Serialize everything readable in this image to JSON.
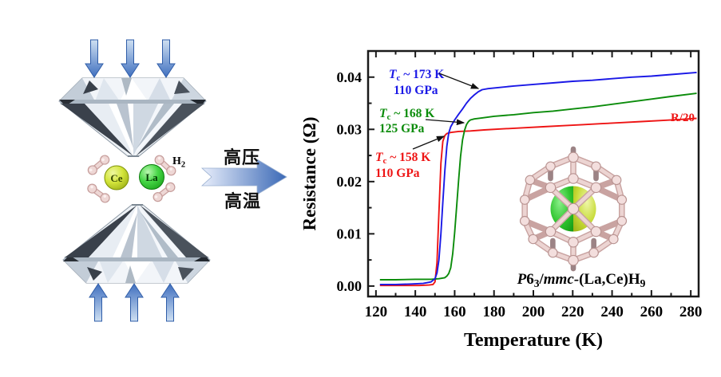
{
  "colors": {
    "red_curve": "#ee1414",
    "green_curve": "#0b8c0b",
    "blue_curve": "#1a18e6",
    "arrow_blue_dark": "#3f6fbf",
    "arrow_blue_light": "#cfe0f2",
    "big_arrow_light": "#e8eefb",
    "big_arrow_dark": "#3b69b6",
    "ce_core": "#d3e53a",
    "ce_edge": "#8fa310",
    "la_core": "#46d646",
    "la_edge": "#129912",
    "h_pink": "#eed7d5",
    "h_pink_edge": "#c59c9a",
    "annotation_arrow": "#111111"
  },
  "dac": {
    "ce": "Ce",
    "la": "La",
    "h2_main": "H",
    "h2_sub": "2"
  },
  "process": {
    "high_pressure": "高压",
    "high_temperature": "高温"
  },
  "chart_data": {
    "type": "line",
    "title": "",
    "xlabel": "Temperature (K)",
    "ylabel": "Resistance (Ω)",
    "xlim": [
      116,
      284
    ],
    "ylim": [
      -0.002,
      0.045
    ],
    "grid": false,
    "legend_position": "none (inline annotations)",
    "xticks": [
      120,
      140,
      160,
      180,
      200,
      220,
      240,
      260,
      280
    ],
    "xticks_minor": [
      130,
      150,
      170,
      190,
      210,
      230,
      250,
      270
    ],
    "yticks": [
      0.0,
      0.01,
      0.02,
      0.03,
      0.04
    ],
    "yticks_minor": [
      0.005,
      0.015,
      0.025,
      0.035
    ],
    "series": [
      {
        "name": "110 GPa, Tc ~ 158 K (R/20)",
        "color": "#ee1414",
        "points": [
          [
            122,
            0.0001
          ],
          [
            128,
            0.0001
          ],
          [
            135,
            0.0001
          ],
          [
            142,
            0.0001
          ],
          [
            147,
            0.0002
          ],
          [
            149,
            0.0003
          ],
          [
            150,
            0.0008
          ],
          [
            151,
            0.0045
          ],
          [
            152,
            0.014
          ],
          [
            153,
            0.0235
          ],
          [
            154,
            0.0277
          ],
          [
            155,
            0.0288
          ],
          [
            156,
            0.0292
          ],
          [
            158,
            0.0294
          ],
          [
            162,
            0.0296
          ],
          [
            168,
            0.0297
          ],
          [
            175,
            0.0299
          ],
          [
            185,
            0.0301
          ],
          [
            195,
            0.0303
          ],
          [
            205,
            0.0305
          ],
          [
            215,
            0.0307
          ],
          [
            225,
            0.0309
          ],
          [
            235,
            0.0311
          ],
          [
            245,
            0.0313
          ],
          [
            255,
            0.0315
          ],
          [
            265,
            0.0317
          ],
          [
            275,
            0.0319
          ],
          [
            283,
            0.0321
          ]
        ]
      },
      {
        "name": "125 GPa, Tc ~ 168 K",
        "color": "#0b8c0b",
        "points": [
          [
            122,
            0.0012
          ],
          [
            130,
            0.0012
          ],
          [
            140,
            0.0013
          ],
          [
            148,
            0.0013
          ],
          [
            152,
            0.0014
          ],
          [
            155,
            0.0016
          ],
          [
            156,
            0.0019
          ],
          [
            157,
            0.0024
          ],
          [
            158,
            0.0035
          ],
          [
            159,
            0.0062
          ],
          [
            160,
            0.0102
          ],
          [
            161,
            0.0152
          ],
          [
            162,
            0.0203
          ],
          [
            163,
            0.0248
          ],
          [
            164,
            0.028
          ],
          [
            165,
            0.0298
          ],
          [
            166,
            0.0309
          ],
          [
            167,
            0.0315
          ],
          [
            168,
            0.0318
          ],
          [
            170,
            0.032
          ],
          [
            174,
            0.0322
          ],
          [
            180,
            0.0325
          ],
          [
            190,
            0.0328
          ],
          [
            200,
            0.0332
          ],
          [
            210,
            0.0335
          ],
          [
            220,
            0.0339
          ],
          [
            230,
            0.0343
          ],
          [
            240,
            0.0348
          ],
          [
            250,
            0.0353
          ],
          [
            260,
            0.0358
          ],
          [
            270,
            0.0363
          ],
          [
            283,
            0.0369
          ]
        ]
      },
      {
        "name": "110 GPa, Tc ~ 173 K",
        "color": "#1a18e6",
        "points": [
          [
            122,
            0.0003
          ],
          [
            130,
            0.0003
          ],
          [
            138,
            0.0004
          ],
          [
            144,
            0.0005
          ],
          [
            148,
            0.0008
          ],
          [
            150,
            0.0014
          ],
          [
            151,
            0.0025
          ],
          [
            152,
            0.005
          ],
          [
            153,
            0.01
          ],
          [
            154,
            0.016
          ],
          [
            155,
            0.022
          ],
          [
            156,
            0.0267
          ],
          [
            157,
            0.0293
          ],
          [
            158,
            0.0305
          ],
          [
            160,
            0.0318
          ],
          [
            162,
            0.0329
          ],
          [
            164,
            0.0339
          ],
          [
            166,
            0.035
          ],
          [
            168,
            0.0359
          ],
          [
            170,
            0.0366
          ],
          [
            172,
            0.0372
          ],
          [
            174,
            0.0376
          ],
          [
            177,
            0.0378
          ],
          [
            182,
            0.038
          ],
          [
            190,
            0.0383
          ],
          [
            200,
            0.0386
          ],
          [
            210,
            0.0389
          ],
          [
            220,
            0.0392
          ],
          [
            230,
            0.0394
          ],
          [
            240,
            0.0397
          ],
          [
            250,
            0.04
          ],
          [
            260,
            0.0402
          ],
          [
            270,
            0.0405
          ],
          [
            283,
            0.0409
          ]
        ]
      }
    ],
    "annotations": {
      "blue": {
        "t": "T",
        "sub": "c",
        "rest": " ~ 173 K",
        "line2": "110 GPa"
      },
      "green": {
        "t": "T",
        "sub": "c",
        "rest": " ~ 168 K",
        "line2": "125 GPa"
      },
      "red": {
        "t": "T",
        "sub": "c",
        "rest": " ~ 158 K",
        "line2": "110 GPa"
      },
      "r20": "R/20"
    },
    "inset_formula": {
      "p": "P",
      "six": "6",
      "sub3": "3",
      "slash": "/",
      "mmc": "mmc",
      "rest": "-(La,Ce)H",
      "sub9": "9"
    }
  }
}
